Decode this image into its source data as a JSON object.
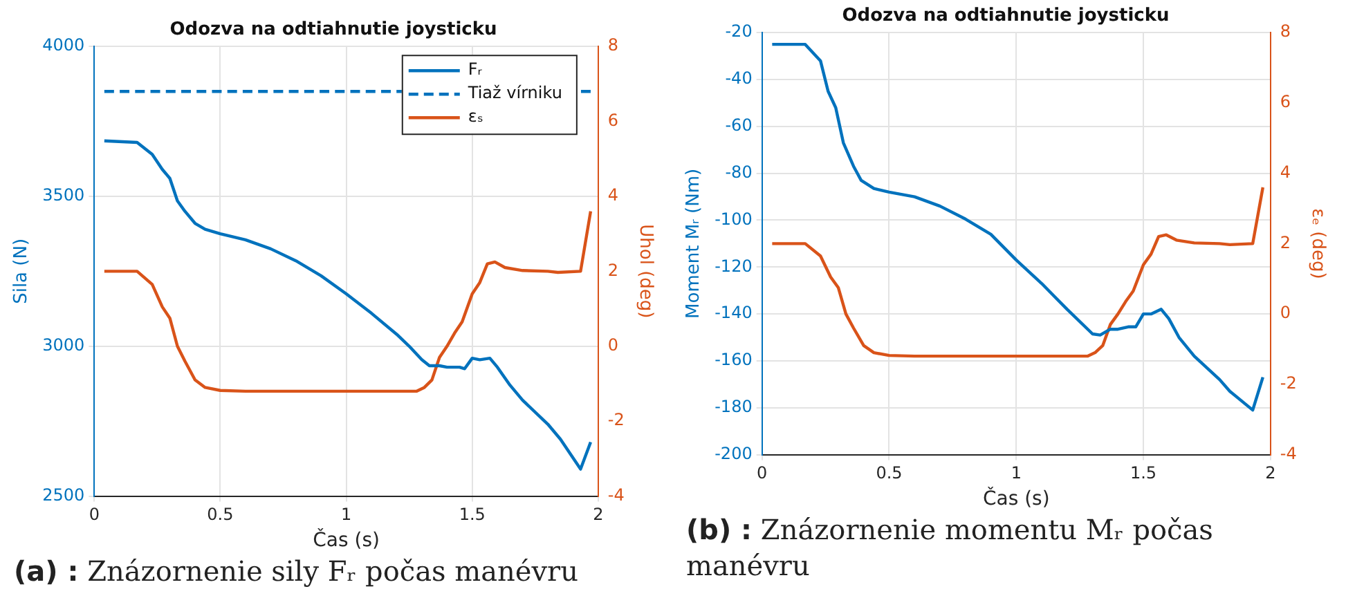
{
  "chart_data": [
    {
      "type": "line",
      "title": "Odozva na odtiahnutie joysticku",
      "xlabel": "Čas (s)",
      "ylabel": "Sila (N)",
      "y2label": "Uhol (deg)",
      "xlim": [
        0,
        2
      ],
      "xticks": [
        0,
        0.5,
        1,
        1.5,
        2
      ],
      "ylim": [
        2500,
        4000
      ],
      "yticks": [
        2500,
        3000,
        3500,
        4000
      ],
      "y2lim": [
        -4,
        8
      ],
      "y2ticks": [
        -4,
        -2,
        0,
        2,
        4,
        6,
        8
      ],
      "grid": true,
      "legend": "top right",
      "annotations": [
        "(a) : Znázornenie sily Fᵣ počas manévru"
      ],
      "series": [
        {
          "name": "Fᵣ",
          "color": "#0072bd",
          "x": [
            0.04,
            0.17,
            0.23,
            0.27,
            0.3,
            0.33,
            0.36,
            0.4,
            0.44,
            0.5,
            0.6,
            0.7,
            0.8,
            0.9,
            1.0,
            1.1,
            1.2,
            1.25,
            1.3,
            1.33,
            1.37,
            1.4,
            1.45,
            1.47,
            1.5,
            1.53,
            1.57,
            1.6,
            1.65,
            1.7,
            1.8,
            1.85,
            1.93,
            1.97
          ],
          "values": [
            3685,
            3680,
            3640,
            3590,
            3560,
            3485,
            3450,
            3410,
            3390,
            3375,
            3355,
            3325,
            3285,
            3235,
            3175,
            3110,
            3040,
            3000,
            2955,
            2935,
            2935,
            2930,
            2930,
            2925,
            2960,
            2955,
            2960,
            2930,
            2870,
            2820,
            2740,
            2690,
            2590,
            2680
          ]
        },
        {
          "name": "Tiaž vírniku",
          "color": "#0072bd",
          "line_style": "dashed",
          "x": [
            0.04,
            1.97
          ],
          "values": [
            3850,
            3850
          ]
        },
        {
          "name": "εₛ",
          "color": "#d95319",
          "axis": "y2",
          "x": [
            0.04,
            0.17,
            0.23,
            0.27,
            0.3,
            0.33,
            0.36,
            0.4,
            0.44,
            0.5,
            0.6,
            1.28,
            1.31,
            1.34,
            1.37,
            1.4,
            1.43,
            1.46,
            1.5,
            1.53,
            1.56,
            1.59,
            1.63,
            1.7,
            1.8,
            1.84,
            1.93,
            1.97
          ],
          "values": [
            2,
            2,
            1.65,
            1.05,
            0.75,
            0,
            -0.4,
            -0.9,
            -1.1,
            -1.18,
            -1.2,
            -1.2,
            -1.1,
            -0.9,
            -0.3,
            0,
            0.35,
            0.65,
            1.4,
            1.7,
            2.2,
            2.25,
            2.1,
            2.02,
            2.0,
            1.97,
            2.0,
            3.6
          ]
        }
      ]
    },
    {
      "type": "line",
      "title": "Odozva na odtiahnutie joysticku",
      "xlabel": "Čas (s)",
      "ylabel": "Moment Mᵣ (Nm)",
      "y2label": "εₑ (deg)",
      "xlim": [
        0,
        2
      ],
      "xticks": [
        0,
        0.5,
        1,
        1.5,
        2
      ],
      "ylim": [
        -200,
        -20
      ],
      "yticks": [
        -200,
        -180,
        -160,
        -140,
        -120,
        -100,
        -80,
        -60,
        -40,
        -20
      ],
      "y2lim": [
        -4,
        8
      ],
      "y2ticks": [
        -4,
        -2,
        0,
        2,
        4,
        6,
        8
      ],
      "grid": true,
      "annotations": [
        "(b) : Znázornenie momentu Mᵣ počas manévru"
      ],
      "series": [
        {
          "color": "#0072bd",
          "x": [
            0.04,
            0.17,
            0.23,
            0.26,
            0.29,
            0.32,
            0.36,
            0.39,
            0.44,
            0.5,
            0.6,
            0.7,
            0.8,
            0.9,
            1.0,
            1.1,
            1.2,
            1.3,
            1.33,
            1.37,
            1.4,
            1.44,
            1.47,
            1.5,
            1.53,
            1.57,
            1.6,
            1.64,
            1.7,
            1.8,
            1.84,
            1.93,
            1.97
          ],
          "values": [
            -25,
            -25,
            -32,
            -45,
            -52,
            -67,
            -77,
            -83,
            -86.5,
            -88,
            -90,
            -94,
            -99.5,
            -106,
            -117,
            -127,
            -138,
            -148.5,
            -149,
            -146.5,
            -146.5,
            -145.5,
            -145.5,
            -140,
            -140,
            -138,
            -142,
            -150,
            -158,
            -168,
            -173,
            -181,
            -167
          ]
        },
        {
          "color": "#d95319",
          "axis": "y2",
          "x": [
            0.04,
            0.17,
            0.23,
            0.27,
            0.3,
            0.33,
            0.36,
            0.4,
            0.44,
            0.5,
            0.6,
            1.28,
            1.31,
            1.34,
            1.37,
            1.4,
            1.43,
            1.46,
            1.5,
            1.53,
            1.56,
            1.59,
            1.63,
            1.7,
            1.8,
            1.84,
            1.93,
            1.97
          ],
          "values": [
            2,
            2,
            1.65,
            1.05,
            0.75,
            0,
            -0.4,
            -0.9,
            -1.1,
            -1.18,
            -1.2,
            -1.2,
            -1.1,
            -0.9,
            -0.3,
            0,
            0.35,
            0.65,
            1.4,
            1.7,
            2.2,
            2.25,
            2.1,
            2.02,
            2.0,
            1.97,
            2.0,
            3.6
          ]
        }
      ]
    }
  ]
}
